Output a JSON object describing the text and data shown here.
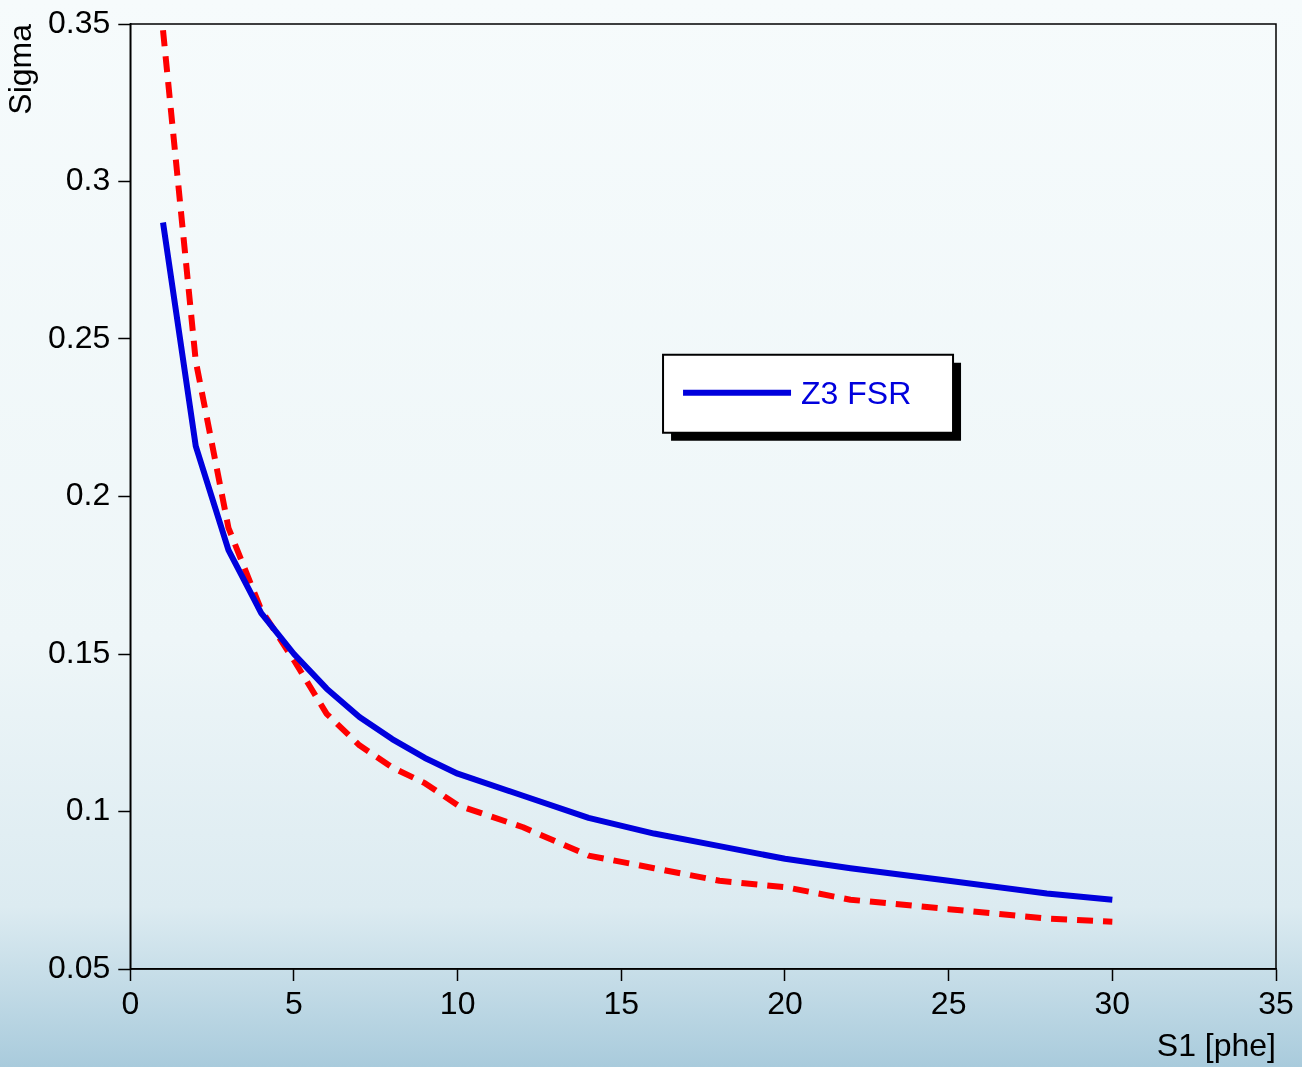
{
  "chart_data": {
    "type": "line",
    "xlabel": "S1 [phe]",
    "ylabel": "Sigma",
    "xlim": [
      0,
      35
    ],
    "xticks": [
      0,
      5,
      10,
      15,
      20,
      25,
      30,
      35
    ],
    "ylim": [
      0.05,
      0.35
    ],
    "yticks": [
      0.05,
      0.1,
      0.15,
      0.2,
      0.25,
      0.3,
      0.35
    ],
    "grid": false,
    "legend": "right",
    "marker": "none",
    "series": [
      {
        "name": "Z3 FSR",
        "color": "#0000dd",
        "line_style": "solid",
        "x": [
          1,
          2,
          3,
          4,
          5,
          6,
          7,
          8,
          9,
          10,
          12,
          14,
          16,
          18,
          20,
          22,
          25,
          28,
          30
        ],
        "values": [
          0.287,
          0.216,
          0.183,
          0.163,
          0.15,
          0.139,
          0.13,
          0.123,
          0.117,
          0.112,
          0.105,
          0.098,
          0.093,
          0.089,
          0.085,
          0.082,
          0.078,
          0.074,
          0.072
        ]
      },
      {
        "color": "#ff0000",
        "line_style": "dashed",
        "x": [
          1,
          2,
          3,
          4,
          5,
          6,
          7,
          8,
          9,
          10,
          12,
          14,
          16,
          18,
          20,
          22,
          25,
          28,
          30
        ],
        "values": [
          0.348,
          0.243,
          0.19,
          0.164,
          0.148,
          0.131,
          0.121,
          0.114,
          0.109,
          0.102,
          0.095,
          0.086,
          0.082,
          0.078,
          0.076,
          0.072,
          0.069,
          0.066,
          0.065
        ]
      }
    ]
  }
}
